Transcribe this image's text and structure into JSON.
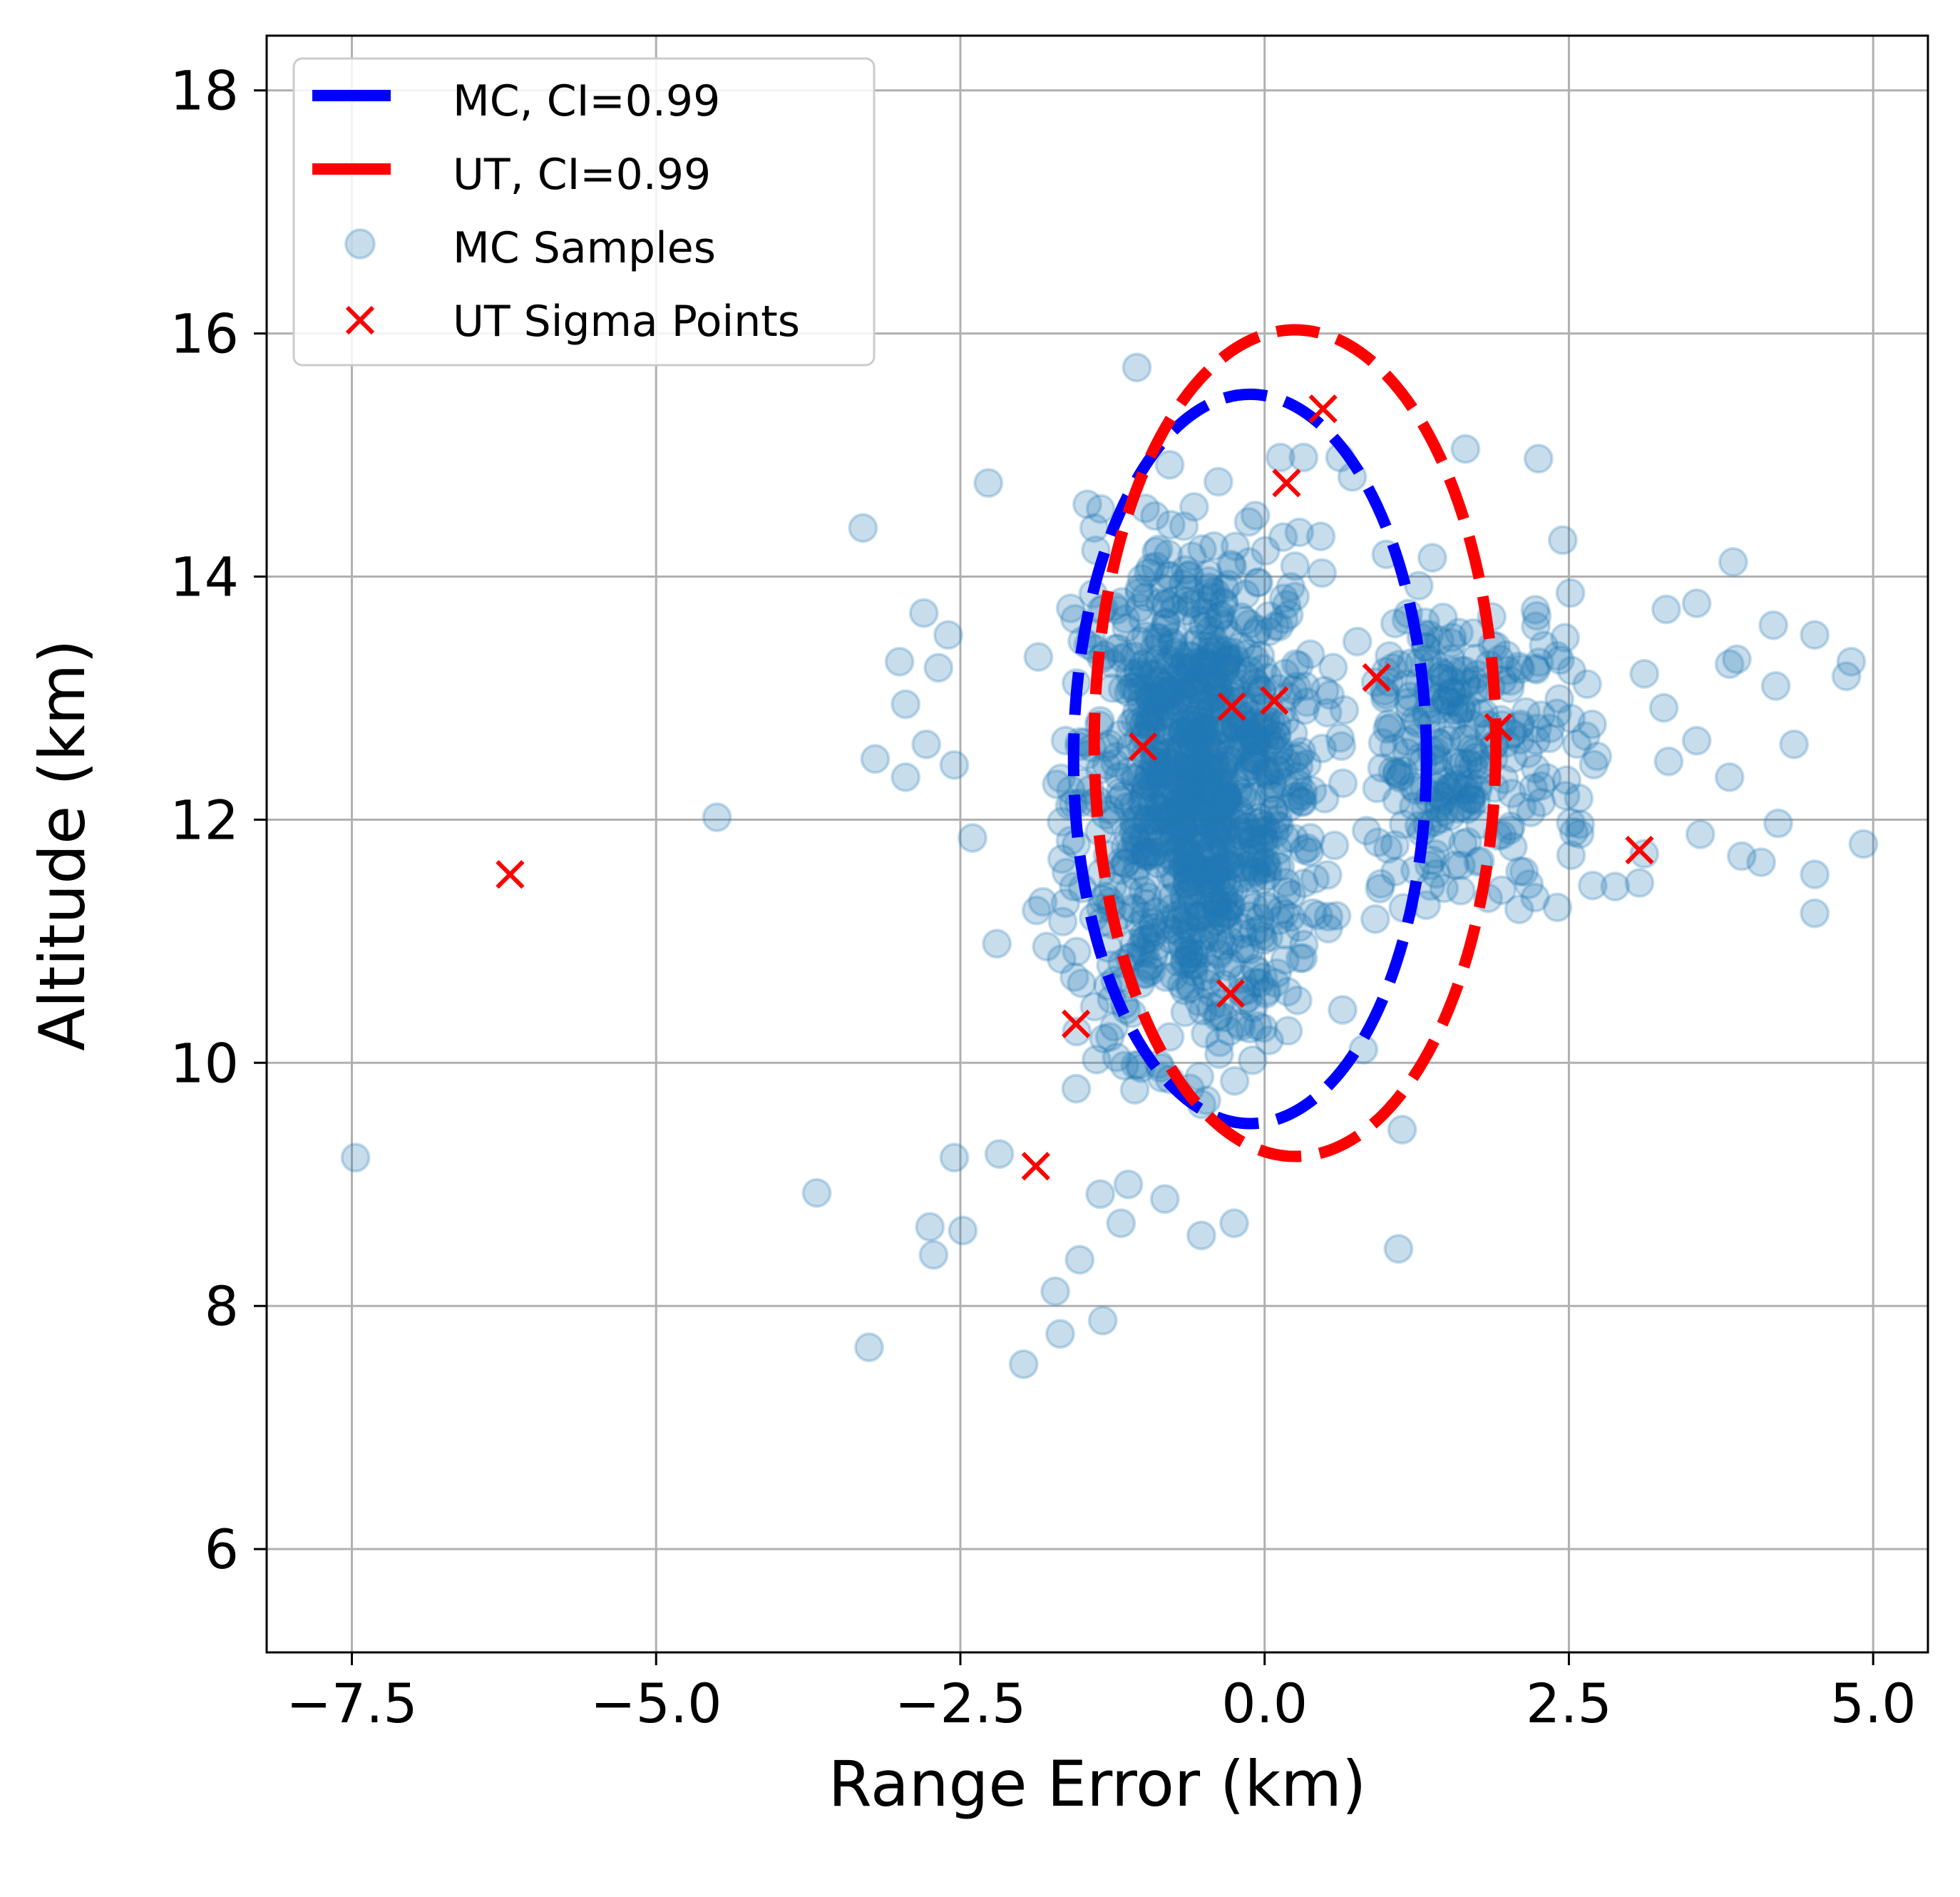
{
  "chart_data": {
    "type": "scatter",
    "xlabel": "Range Error (km)",
    "ylabel": "Altitude (km)",
    "xlim": [
      -8.2,
      5.45
    ],
    "ylim": [
      5.15,
      18.45
    ],
    "x_ticks": [
      -7.5,
      -5.0,
      -2.5,
      0.0,
      2.5,
      5.0
    ],
    "x_tick_labels": [
      "−7.5",
      "−5.0",
      "−2.5",
      "0.0",
      "2.5",
      "5.0"
    ],
    "y_ticks": [
      6,
      8,
      10,
      12,
      14,
      16,
      18
    ],
    "y_tick_labels": [
      "6",
      "8",
      "10",
      "12",
      "14",
      "16",
      "18"
    ],
    "grid": true,
    "legend_position": "top-left",
    "legend": {
      "mc_ellipse": "MC, CI=0.99",
      "ut_ellipse": "UT, CI=0.99",
      "mc_samples": "MC Samples",
      "ut_sigma": "UT Sigma Points"
    },
    "colors": {
      "mc_ellipse": "#0000ff",
      "ut_ellipse": "#ff0000",
      "mc_samples": "#1f77b4",
      "ut_sigma": "#ff0000"
    },
    "ellipses": [
      {
        "name": "MC, CI=0.99",
        "center": [
          -0.12,
          12.5
        ],
        "semi_axes": [
          1.45,
          3.0
        ],
        "angle_deg": 0
      },
      {
        "name": "UT, CI=0.99",
        "center": [
          0.25,
          12.63
        ],
        "semi_axes": [
          1.65,
          3.4
        ],
        "angle_deg": 0
      }
    ],
    "sigma_points": [
      [
        -6.2,
        11.55
      ],
      [
        -1.0,
        12.6
      ],
      [
        -0.27,
        12.93
      ],
      [
        0.08,
        12.98
      ],
      [
        0.92,
        13.17
      ],
      [
        1.92,
        12.76
      ],
      [
        3.08,
        11.75
      ],
      [
        0.18,
        14.77
      ],
      [
        0.48,
        15.38
      ],
      [
        -0.28,
        10.57
      ],
      [
        -1.55,
        10.32
      ],
      [
        -1.88,
        9.15
      ]
    ],
    "mc_outlier_samples": [
      [
        -7.47,
        9.22
      ],
      [
        -4.5,
        12.02
      ],
      [
        -3.68,
        8.93
      ],
      [
        -3.25,
        7.66
      ],
      [
        -3.3,
        14.4
      ],
      [
        -2.75,
        8.65
      ],
      [
        -2.72,
        8.42
      ],
      [
        -2.48,
        8.62
      ],
      [
        -2.55,
        9.22
      ],
      [
        -2.18,
        9.25
      ],
      [
        -1.98,
        7.52
      ],
      [
        -1.68,
        7.77
      ],
      [
        -1.72,
        8.12
      ],
      [
        -1.52,
        8.38
      ],
      [
        -1.35,
        8.92
      ],
      [
        -1.33,
        7.88
      ],
      [
        -1.18,
        8.68
      ],
      [
        -1.12,
        9.0
      ],
      [
        -0.82,
        8.88
      ],
      [
        -0.52,
        8.58
      ],
      [
        -0.25,
        8.68
      ],
      [
        1.1,
        8.47
      ],
      [
        1.13,
        9.45
      ],
      [
        -1.05,
        15.72
      ],
      [
        -0.78,
        14.92
      ],
      [
        -0.38,
        14.78
      ],
      [
        -2.27,
        14.77
      ],
      [
        -1.4,
        14.4
      ],
      [
        0.13,
        14.98
      ],
      [
        0.32,
        14.98
      ],
      [
        0.62,
        14.98
      ],
      [
        0.72,
        14.82
      ],
      [
        2.25,
        14.97
      ],
      [
        1.65,
        15.05
      ],
      [
        2.45,
        14.3
      ],
      [
        3.3,
        13.73
      ],
      [
        3.55,
        13.78
      ],
      [
        3.85,
        14.12
      ],
      [
        3.82,
        13.28
      ],
      [
        3.88,
        13.32
      ],
      [
        4.18,
        13.6
      ],
      [
        4.52,
        13.52
      ],
      [
        4.78,
        13.18
      ],
      [
        4.82,
        13.3
      ],
      [
        4.2,
        13.1
      ],
      [
        4.35,
        12.62
      ],
      [
        3.92,
        11.7
      ],
      [
        4.08,
        11.65
      ],
      [
        4.22,
        11.97
      ],
      [
        4.52,
        11.55
      ],
      [
        4.52,
        11.23
      ],
      [
        4.92,
        11.8
      ],
      [
        3.82,
        12.35
      ],
      [
        3.58,
        11.88
      ],
      [
        3.55,
        12.65
      ],
      [
        3.28,
        12.92
      ],
      [
        3.32,
        12.48
      ],
      [
        3.12,
        11.72
      ],
      [
        3.08,
        11.48
      ],
      [
        2.88,
        11.45
      ],
      [
        3.12,
        13.2
      ],
      [
        -3.2,
        12.5
      ],
      [
        -2.95,
        12.95
      ],
      [
        -3.0,
        13.3
      ],
      [
        -2.8,
        13.7
      ],
      [
        -2.6,
        13.52
      ],
      [
        -2.78,
        12.62
      ],
      [
        -2.55,
        12.45
      ],
      [
        -2.4,
        11.85
      ],
      [
        -2.2,
        10.98
      ],
      [
        -2.95,
        12.35
      ],
      [
        -2.68,
        13.25
      ]
    ],
    "mc_dense_cluster": {
      "x_range": [
        -1.9,
        0.9
      ],
      "y_range": [
        9.6,
        14.6
      ],
      "center": [
        -0.55,
        12.2
      ]
    },
    "mc_secondary_cluster": {
      "x_range": [
        0.9,
        2.8
      ],
      "y_range": [
        11.0,
        14.2
      ],
      "center": [
        1.6,
        12.5
      ]
    }
  }
}
